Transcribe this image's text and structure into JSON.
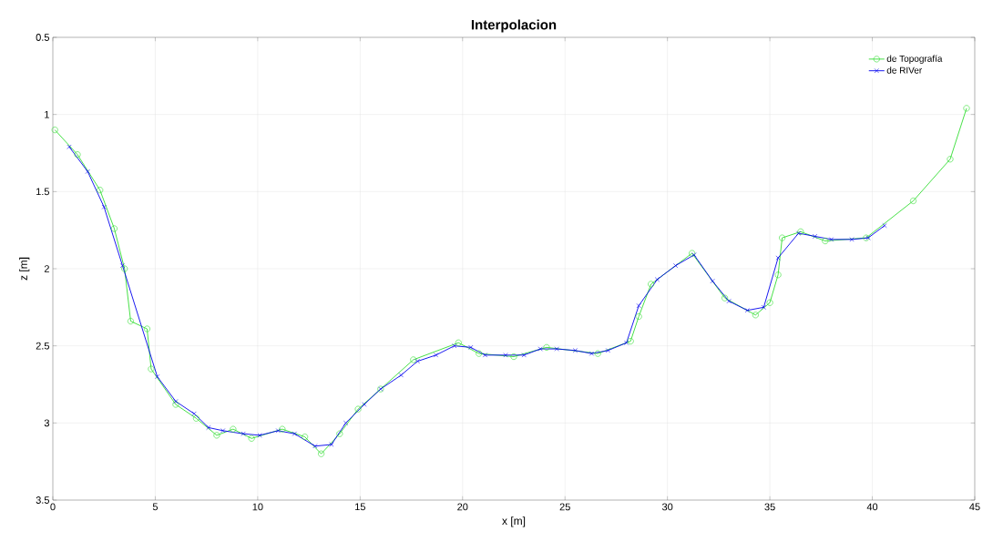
{
  "chart_data": {
    "type": "line",
    "title": "Interpolacion",
    "xlabel": "x [m]",
    "ylabel": "z [m]",
    "xlim": [
      0,
      45
    ],
    "xticks": [
      0,
      5,
      10,
      15,
      20,
      25,
      30,
      35,
      40,
      45
    ],
    "ylim": [
      3.5,
      0.5
    ],
    "yticks": [
      0.5,
      1,
      1.5,
      2,
      2.5,
      3,
      3.5
    ],
    "grid": true,
    "legend": "top right",
    "line_style": "solid",
    "series": [
      {
        "name": "de Topografía",
        "color": "#33dd33",
        "marker": "circle",
        "x": [
          0.1,
          1.2,
          2.3,
          3.0,
          3.5,
          3.8,
          4.6,
          4.8,
          6.0,
          7.0,
          8.0,
          8.8,
          9.7,
          11.2,
          12.3,
          13.1,
          14.0,
          14.9,
          16.0,
          17.6,
          19.8,
          20.8,
          22.5,
          24.1,
          26.6,
          28.2,
          28.6,
          29.2,
          31.2,
          32.8,
          34.3,
          35.0,
          35.4,
          35.6,
          36.5,
          37.7,
          39.7,
          42.0,
          43.8,
          44.6
        ],
        "values": [
          1.1,
          1.26,
          1.49,
          1.74,
          2.0,
          2.34,
          2.39,
          2.65,
          2.88,
          2.97,
          3.08,
          3.04,
          3.1,
          3.04,
          3.09,
          3.2,
          3.07,
          2.91,
          2.78,
          2.59,
          2.48,
          2.55,
          2.57,
          2.51,
          2.55,
          2.47,
          2.31,
          2.1,
          1.9,
          2.19,
          2.3,
          2.22,
          2.04,
          1.8,
          1.76,
          1.82,
          1.8,
          1.56,
          1.29,
          0.96
        ]
      },
      {
        "name": "de RIVer",
        "color": "#0000ee",
        "marker": "cross",
        "x": [
          0.8,
          1.7,
          2.5,
          3.4,
          5.1,
          6.0,
          6.9,
          7.6,
          8.3,
          9.3,
          10.1,
          11.0,
          11.8,
          12.8,
          13.6,
          14.3,
          15.2,
          16.0,
          17.0,
          17.8,
          18.7,
          19.6,
          20.4,
          21.1,
          22.1,
          23.0,
          23.8,
          24.6,
          25.5,
          26.3,
          27.1,
          28.0,
          28.6,
          29.5,
          30.4,
          31.3,
          32.2,
          33.0,
          33.9,
          34.7,
          35.4,
          36.4,
          37.2,
          38.0,
          39.0,
          39.8,
          40.6
        ],
        "values": [
          1.21,
          1.37,
          1.6,
          1.98,
          2.7,
          2.86,
          2.94,
          3.03,
          3.05,
          3.07,
          3.08,
          3.05,
          3.07,
          3.15,
          3.14,
          3.0,
          2.88,
          2.78,
          2.69,
          2.6,
          2.56,
          2.5,
          2.51,
          2.56,
          2.56,
          2.56,
          2.52,
          2.52,
          2.53,
          2.55,
          2.53,
          2.48,
          2.24,
          2.07,
          1.98,
          1.91,
          2.08,
          2.21,
          2.27,
          2.25,
          1.93,
          1.77,
          1.79,
          1.81,
          1.81,
          1.8,
          1.72
        ]
      }
    ]
  }
}
